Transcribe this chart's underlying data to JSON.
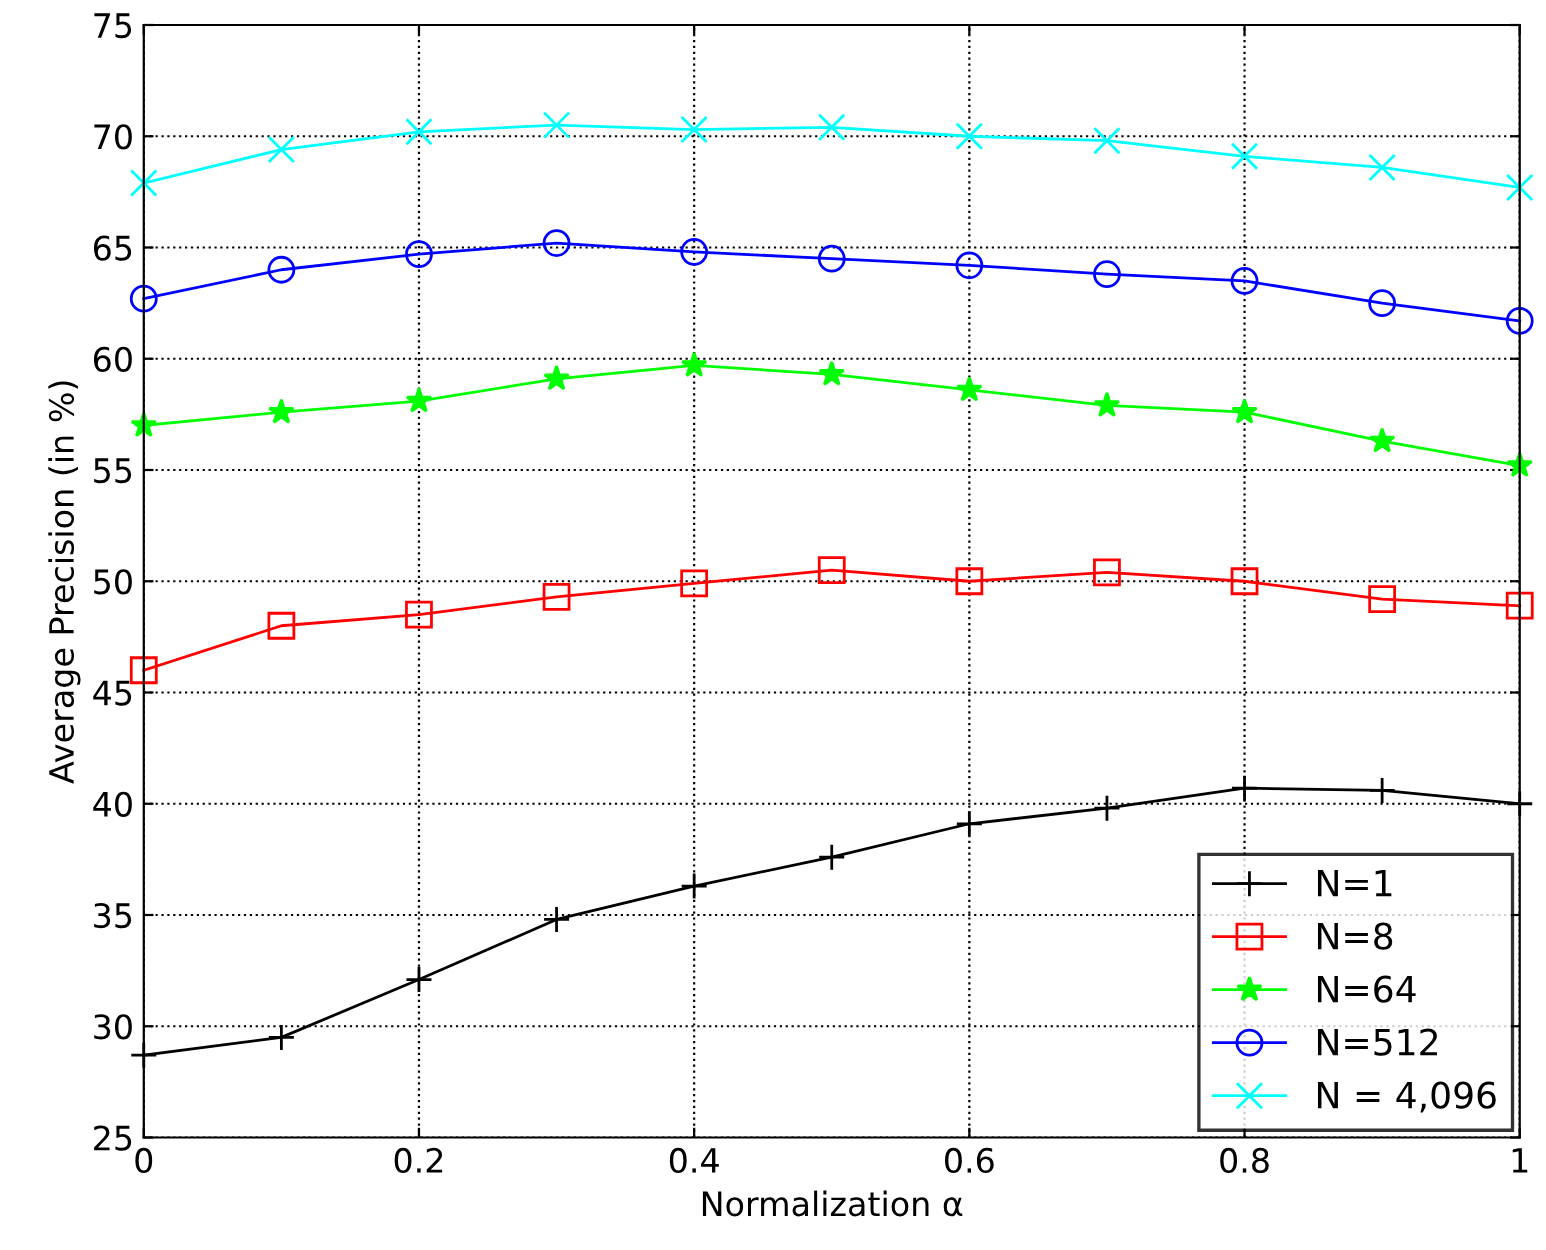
{
  "chart_data": {
    "type": "line",
    "xlabel": "Normalization α",
    "ylabel": "Average Precision (in %)",
    "x": [
      0,
      0.1,
      0.2,
      0.3,
      0.4,
      0.5,
      0.6,
      0.7,
      0.8,
      0.9,
      1
    ],
    "series": [
      {
        "name": "N=1",
        "color": "#000000",
        "marker": "plus",
        "values": [
          28.7,
          29.5,
          32.1,
          34.8,
          36.3,
          37.6,
          39.1,
          39.8,
          40.7,
          40.6,
          40.0
        ]
      },
      {
        "name": "N=8",
        "color": "#ff0000",
        "marker": "square",
        "values": [
          46.0,
          48.0,
          48.5,
          49.3,
          49.9,
          50.5,
          50.0,
          50.4,
          50.0,
          49.2,
          48.9
        ]
      },
      {
        "name": "N=64",
        "color": "#00ff00",
        "marker": "star",
        "values": [
          57.0,
          57.6,
          58.1,
          59.1,
          59.7,
          59.3,
          58.6,
          57.9,
          57.6,
          56.3,
          55.2
        ]
      },
      {
        "name": "N=512",
        "color": "#0000ff",
        "marker": "circle",
        "values": [
          62.7,
          64.0,
          64.7,
          65.2,
          64.8,
          64.5,
          64.2,
          63.8,
          63.5,
          62.5,
          61.7
        ]
      },
      {
        "name": "N = 4,096",
        "color": "#00ffff",
        "marker": "x",
        "values": [
          67.9,
          69.4,
          70.2,
          70.5,
          70.3,
          70.4,
          70.0,
          69.8,
          69.1,
          68.6,
          67.7
        ]
      }
    ],
    "xlim": [
      0,
      1
    ],
    "xticks": [
      0,
      0.2,
      0.4,
      0.6,
      0.8,
      1
    ],
    "ylim": [
      25,
      75
    ],
    "yticks": [
      25,
      30,
      35,
      40,
      45,
      50,
      55,
      60,
      65,
      70,
      75
    ],
    "grid": true,
    "legend": "bottom right",
    "line_style": "solid"
  }
}
